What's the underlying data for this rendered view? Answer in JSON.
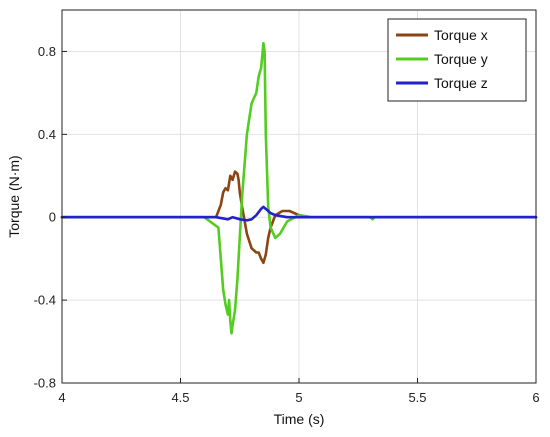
{
  "chart_data": {
    "type": "line",
    "title": "",
    "xlabel": "Time (s)",
    "ylabel": "Torque (N·m)",
    "xlim": [
      4,
      6
    ],
    "ylim": [
      -0.8,
      1.0
    ],
    "xticks": [
      4,
      4.5,
      5,
      5.5,
      6
    ],
    "xtick_labels": [
      "4",
      "4.5",
      "5",
      "5.5",
      "6"
    ],
    "yticks": [
      -0.8,
      -0.4,
      0,
      0.4,
      0.8
    ],
    "ytick_labels": [
      "-0.8",
      "-0.4",
      "0",
      "0.4",
      "0.8"
    ],
    "grid": true,
    "legend_position": "top-right",
    "series": [
      {
        "name": "Torque x",
        "color": "#8B4513",
        "x": [
          4.0,
          4.6,
          4.65,
          4.67,
          4.68,
          4.69,
          4.7,
          4.71,
          4.72,
          4.73,
          4.74,
          4.745,
          4.75,
          4.76,
          4.78,
          4.8,
          4.82,
          4.83,
          4.84,
          4.845,
          4.85,
          4.86,
          4.87,
          4.88,
          4.9,
          4.93,
          4.96,
          5.0,
          5.05,
          6.0
        ],
        "y": [
          0,
          0,
          0,
          0.06,
          0.12,
          0.14,
          0.13,
          0.2,
          0.18,
          0.22,
          0.21,
          0.18,
          0.12,
          0.05,
          -0.08,
          -0.15,
          -0.17,
          -0.17,
          -0.2,
          -0.21,
          -0.22,
          -0.18,
          -0.1,
          -0.05,
          0.01,
          0.03,
          0.03,
          0.01,
          0,
          0
        ]
      },
      {
        "name": "Torque y",
        "color": "#55CC22",
        "x": [
          4.0,
          4.6,
          4.66,
          4.68,
          4.69,
          4.7,
          4.705,
          4.71,
          4.715,
          4.72,
          4.73,
          4.74,
          4.76,
          4.78,
          4.8,
          4.82,
          4.83,
          4.84,
          4.845,
          4.85,
          4.855,
          4.86,
          4.87,
          4.88,
          4.9,
          4.92,
          4.95,
          5.0,
          5.05,
          5.3,
          5.31,
          5.32,
          6.0
        ],
        "y": [
          0,
          0,
          -0.05,
          -0.35,
          -0.42,
          -0.47,
          -0.4,
          -0.5,
          -0.56,
          -0.52,
          -0.45,
          -0.3,
          0.1,
          0.4,
          0.55,
          0.6,
          0.68,
          0.72,
          0.78,
          0.84,
          0.8,
          0.4,
          0.05,
          -0.05,
          -0.1,
          -0.08,
          -0.02,
          0.01,
          0,
          0,
          -0.01,
          0,
          0
        ]
      },
      {
        "name": "Torque z",
        "color": "#2222CC",
        "x": [
          4.0,
          4.6,
          4.65,
          4.7,
          4.72,
          4.75,
          4.78,
          4.8,
          4.82,
          4.84,
          4.85,
          4.86,
          4.88,
          4.9,
          4.95,
          5.0,
          6.0
        ],
        "y": [
          0,
          0,
          0,
          -0.01,
          0.0,
          -0.01,
          -0.015,
          -0.01,
          0.01,
          0.04,
          0.05,
          0.04,
          0.02,
          0.01,
          0,
          0,
          0
        ]
      }
    ]
  }
}
